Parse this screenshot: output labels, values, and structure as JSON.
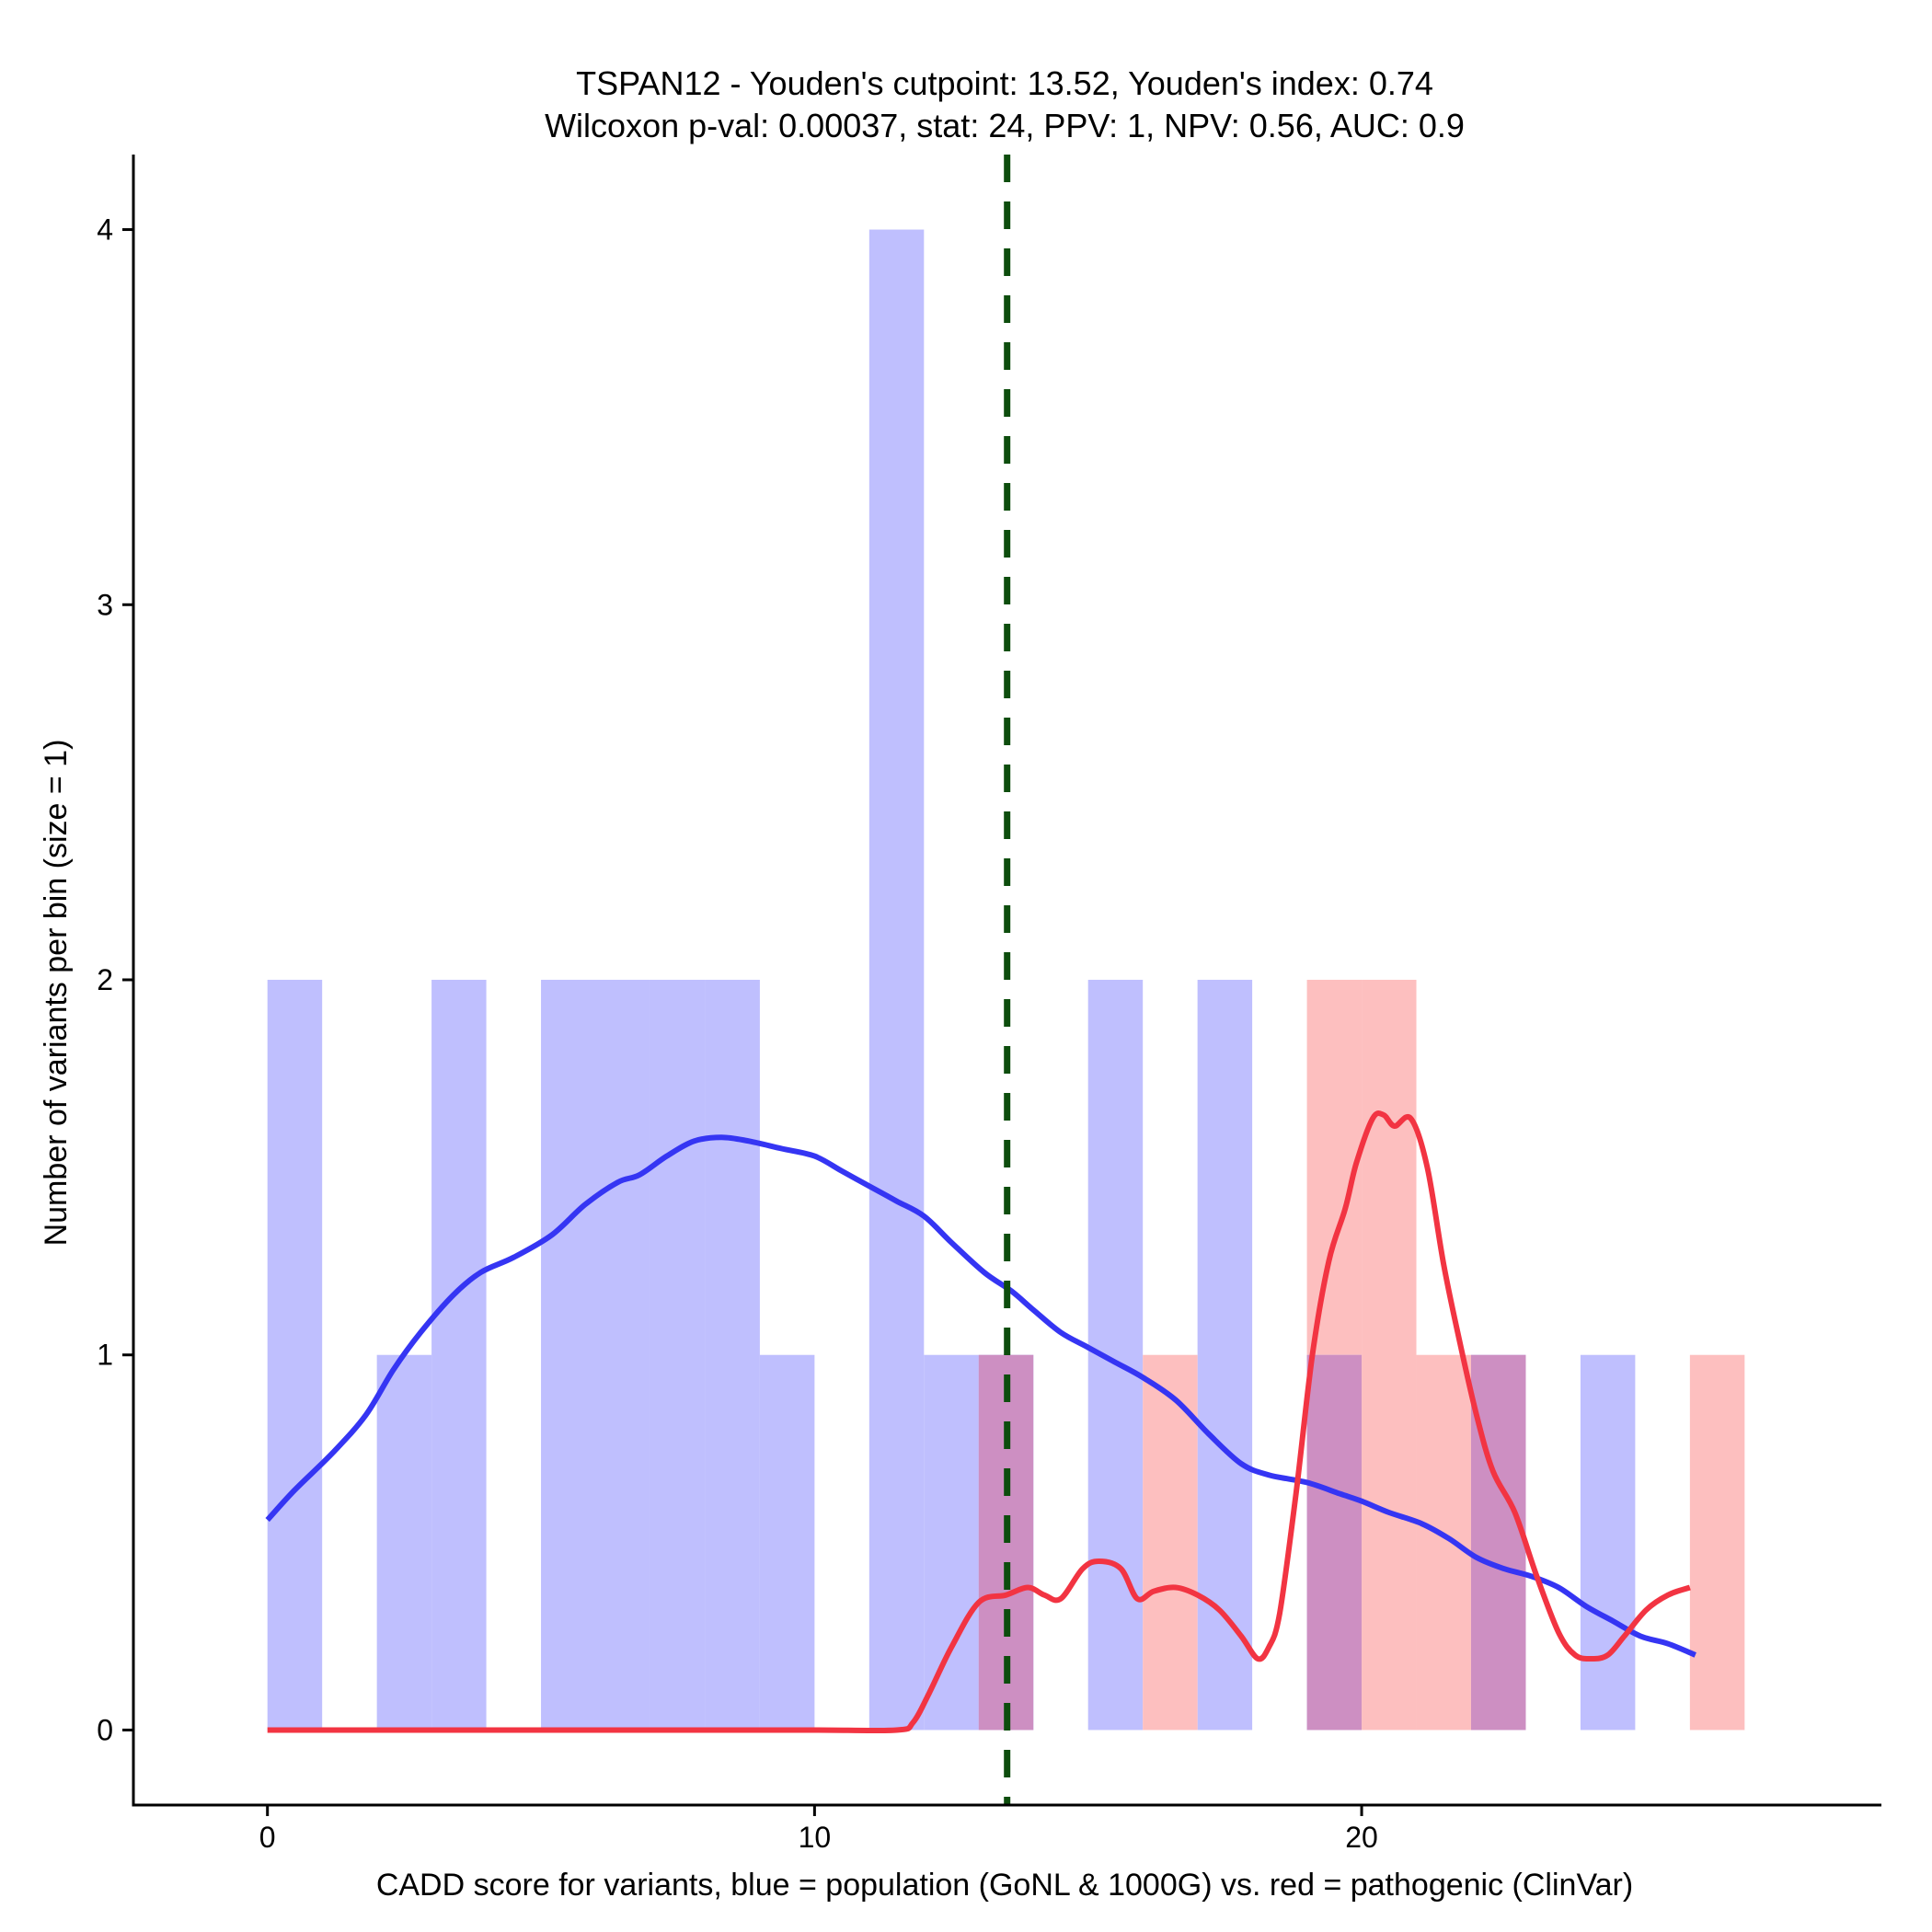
{
  "chart_data": {
    "type": "bar",
    "title": "TSPAN12 - Youden's cutpoint: 13.52, Youden's index: 0.74",
    "subtitle": "Wilcoxon p-val: 0.00037, stat: 24, PPV: 1, NPV: 0.56, AUC: 0.9",
    "xlabel": "CADD score for variants, blue = population (GoNL & 1000G) vs. red = pathogenic (ClinVar)",
    "ylabel": "Number of variants per bin (size = 1)",
    "xlim": [
      -2.45,
      29.5
    ],
    "ylim": [
      -0.2,
      4.2
    ],
    "x_ticks": [
      0,
      10,
      20
    ],
    "y_ticks": [
      0,
      1,
      2,
      3,
      4
    ],
    "bin_width": 1,
    "cutpoint": 13.52,
    "colors": {
      "population_bar": "#bfbffe",
      "pathogenic_bar": "#fdbfbf",
      "overlap_bar": "#cd8fc2",
      "population_line": "#3535f3",
      "pathogenic_line": "#f23442",
      "cutpoint_line": "#0d4d0d"
    },
    "series": [
      {
        "name": "population (GoNL & 1000G)",
        "bins": [
          {
            "start": 0,
            "count": 2
          },
          {
            "start": 2,
            "count": 1
          },
          {
            "start": 3,
            "count": 2
          },
          {
            "start": 5,
            "count": 2
          },
          {
            "start": 6,
            "count": 2
          },
          {
            "start": 7,
            "count": 2
          },
          {
            "start": 8,
            "count": 2
          },
          {
            "start": 9,
            "count": 1
          },
          {
            "start": 11,
            "count": 4
          },
          {
            "start": 12,
            "count": 1
          },
          {
            "start": 13,
            "count": 1
          },
          {
            "start": 15,
            "count": 2
          },
          {
            "start": 17,
            "count": 2
          },
          {
            "start": 19,
            "count": 1
          },
          {
            "start": 22,
            "count": 1
          },
          {
            "start": 24,
            "count": 1
          }
        ]
      },
      {
        "name": "pathogenic (ClinVar)",
        "bins": [
          {
            "start": 13,
            "count": 1
          },
          {
            "start": 16,
            "count": 1
          },
          {
            "start": 19,
            "count": 2
          },
          {
            "start": 20,
            "count": 2
          },
          {
            "start": 21,
            "count": 1
          },
          {
            "start": 22,
            "count": 1
          },
          {
            "start": 26,
            "count": 1
          }
        ]
      }
    ],
    "density_lines": [
      {
        "name": "population density",
        "x": [
          0,
          0.5,
          1.2,
          1.8,
          2.3,
          2.8,
          3.4,
          3.9,
          4.5,
          5.2,
          5.8,
          6.4,
          6.8,
          7.3,
          7.8,
          8.3,
          8.8,
          9.4,
          10,
          10.5,
          11,
          11.5,
          12,
          12.5,
          13.1,
          13.6,
          14,
          14.5,
          15,
          15.5,
          16,
          16.6,
          17.2,
          17.8,
          18.3,
          19,
          19.6,
          20,
          20.5,
          21.1,
          21.6,
          22.1,
          22.6,
          23.1,
          23.6,
          24.1,
          24.6,
          25.1,
          25.6,
          26.1
        ],
        "y": [
          0.56,
          0.64,
          0.74,
          0.84,
          0.96,
          1.06,
          1.16,
          1.22,
          1.26,
          1.32,
          1.4,
          1.46,
          1.48,
          1.53,
          1.57,
          1.58,
          1.57,
          1.55,
          1.53,
          1.49,
          1.45,
          1.41,
          1.37,
          1.3,
          1.22,
          1.17,
          1.12,
          1.06,
          1.02,
          0.98,
          0.94,
          0.88,
          0.79,
          0.71,
          0.68,
          0.66,
          0.63,
          0.61,
          0.58,
          0.55,
          0.51,
          0.46,
          0.43,
          0.41,
          0.38,
          0.33,
          0.29,
          0.25,
          0.23,
          0.2
        ]
      },
      {
        "name": "pathogenic density",
        "x": [
          0,
          2,
          4,
          6,
          8,
          10,
          11.5,
          11.8,
          12.1,
          12.5,
          13,
          13.5,
          13.9,
          14.2,
          14.5,
          14.9,
          15.2,
          15.6,
          15.9,
          16.2,
          16.6,
          17,
          17.4,
          17.8,
          18.1,
          18.3,
          18.5,
          18.8,
          19.1,
          19.4,
          19.7,
          19.9,
          20.2,
          20.4,
          20.6,
          20.9,
          21.2,
          21.5,
          21.8,
          22.1,
          22.4,
          22.8,
          23.2,
          23.6,
          23.9,
          24.2,
          24.5,
          24.8,
          25.2,
          25.6,
          26
        ],
        "y": [
          0,
          0,
          0,
          0,
          0,
          0,
          0,
          0.02,
          0.1,
          0.22,
          0.34,
          0.36,
          0.38,
          0.36,
          0.35,
          0.43,
          0.45,
          0.43,
          0.35,
          0.37,
          0.38,
          0.36,
          0.32,
          0.25,
          0.19,
          0.22,
          0.31,
          0.63,
          1.0,
          1.25,
          1.39,
          1.51,
          1.63,
          1.64,
          1.61,
          1.63,
          1.5,
          1.24,
          1.03,
          0.84,
          0.69,
          0.58,
          0.41,
          0.26,
          0.2,
          0.19,
          0.2,
          0.25,
          0.32,
          0.36,
          0.38
        ]
      }
    ]
  }
}
